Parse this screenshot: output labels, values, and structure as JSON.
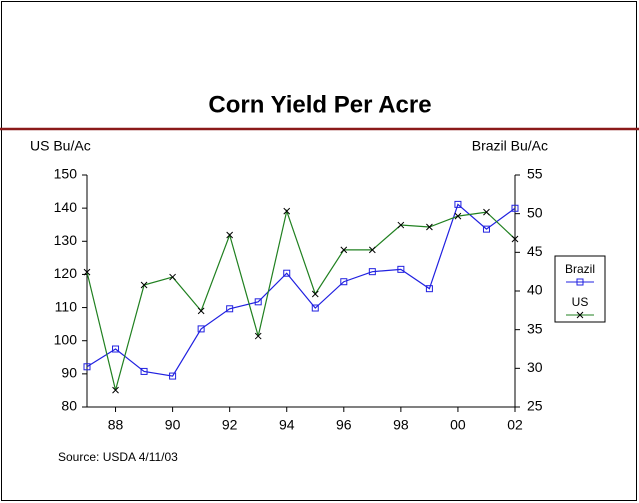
{
  "chart_data": {
    "type": "line",
    "title": "Corn Yield Per Acre",
    "y_label": "US Bu/Ac",
    "y2_label": "Brazil Bu/Ac",
    "source": "Source: USDA 4/11/03",
    "x": [
      1987,
      1988,
      1989,
      1990,
      1991,
      1992,
      1993,
      1994,
      1995,
      1996,
      1997,
      1998,
      1999,
      2000,
      2001,
      2002
    ],
    "xlim": [
      1987,
      2002
    ],
    "xticks": [
      {
        "value": 1988,
        "label": "88"
      },
      {
        "value": 1990,
        "label": "90"
      },
      {
        "value": 1992,
        "label": "92"
      },
      {
        "value": 1994,
        "label": "94"
      },
      {
        "value": 1996,
        "label": "96"
      },
      {
        "value": 1998,
        "label": "98"
      },
      {
        "value": 2000,
        "label": "00"
      },
      {
        "value": 2002,
        "label": "02"
      }
    ],
    "ylim": [
      80,
      150
    ],
    "yticks": [
      80,
      90,
      100,
      110,
      120,
      130,
      140,
      150
    ],
    "y2lim": [
      25,
      55
    ],
    "y2ticks": [
      25,
      30,
      35,
      40,
      45,
      50,
      55
    ],
    "series": [
      {
        "name": "Brazil",
        "color": "#2020e0",
        "marker": "square",
        "axis": "y2",
        "values": [
          30.2,
          32.5,
          29.6,
          29.0,
          35.1,
          37.7,
          38.6,
          42.3,
          37.8,
          41.2,
          42.5,
          42.8,
          40.3,
          51.2,
          48.0,
          50.7
        ]
      },
      {
        "name": "US",
        "color": "#208020",
        "marker": "x",
        "axis": "y",
        "values": [
          120.7,
          85.1,
          116.8,
          119.2,
          109.0,
          131.9,
          101.4,
          139.1,
          114.1,
          127.4,
          127.4,
          134.9,
          134.3,
          137.6,
          138.8,
          130.7
        ]
      }
    ]
  }
}
